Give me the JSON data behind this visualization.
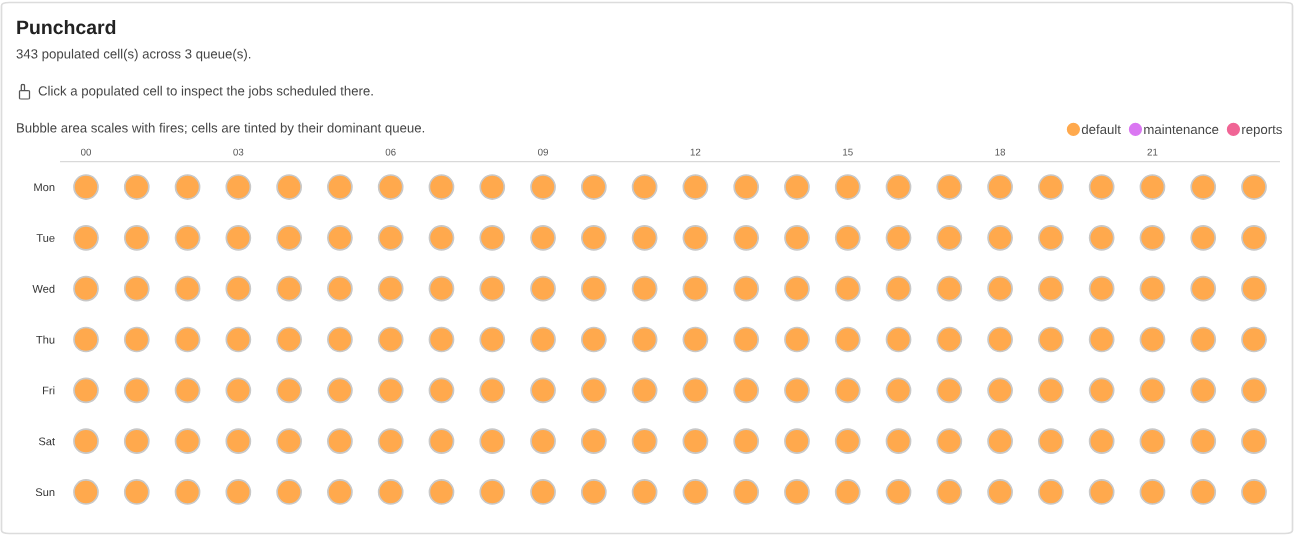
{
  "chart_data": {
    "type": "bubble",
    "orientation": "horizontal",
    "title": "Punchcard",
    "subtitle": "343 populated cell(s) across 3 queue(s).",
    "annotations": [
      "Click a populated cell to inspect the jobs scheduled there.",
      "Bubble area scales with fires; cells are tinted by their dominant queue."
    ],
    "categories": [
      "Mon",
      "Tue",
      "Wed",
      "Thu",
      "Fri",
      "Sat",
      "Sun"
    ],
    "xlim": [
      -0.5,
      23.5
    ],
    "xticks": [
      {
        "value": 0,
        "label": "00"
      },
      {
        "value": 3,
        "label": "03"
      },
      {
        "value": 6,
        "label": "06"
      },
      {
        "value": 9,
        "label": "09"
      },
      {
        "value": 12,
        "label": "12"
      },
      {
        "value": 15,
        "label": "15"
      },
      {
        "value": 18,
        "label": "18"
      },
      {
        "value": 21,
        "label": "21"
      }
    ],
    "series": [
      {
        "name": "default",
        "color": "#ffa94d",
        "values": [
          0,
          0,
          0,
          0,
          0,
          0,
          0
        ],
        "sizes": [
          1,
          1,
          1,
          1,
          1,
          1,
          1
        ]
      },
      {
        "color": "#ffa94d",
        "values": [
          1,
          1,
          1,
          1,
          1,
          1,
          1
        ],
        "sizes": [
          1,
          1,
          1,
          1,
          1,
          1,
          1
        ]
      },
      {
        "color": "#ffa94d",
        "values": [
          2,
          2,
          2,
          2,
          2,
          2,
          2
        ],
        "sizes": [
          1,
          1,
          1,
          1,
          1,
          1,
          1
        ]
      },
      {
        "color": "#ffa94d",
        "values": [
          3,
          3,
          3,
          3,
          3,
          3,
          3
        ],
        "sizes": [
          1,
          1,
          1,
          1,
          1,
          1,
          1
        ]
      },
      {
        "color": "#ffa94d",
        "values": [
          4,
          4,
          4,
          4,
          4,
          4,
          4
        ],
        "sizes": [
          1,
          1,
          1,
          1,
          1,
          1,
          1
        ]
      },
      {
        "color": "#ffa94d",
        "values": [
          5,
          5,
          5,
          5,
          5,
          5,
          5
        ],
        "sizes": [
          1,
          1,
          1,
          1,
          1,
          1,
          1
        ]
      },
      {
        "color": "#ffa94d",
        "values": [
          6,
          6,
          6,
          6,
          6,
          6,
          6
        ],
        "sizes": [
          1,
          1,
          1,
          1,
          1,
          1,
          1
        ]
      },
      {
        "color": "#ffa94d",
        "values": [
          7,
          7,
          7,
          7,
          7,
          7,
          7
        ],
        "sizes": [
          1,
          1,
          1,
          1,
          1,
          1,
          1
        ]
      },
      {
        "color": "#ffa94d",
        "values": [
          8,
          8,
          8,
          8,
          8,
          8,
          8
        ],
        "sizes": [
          1,
          1,
          1,
          1,
          1,
          1,
          1
        ]
      },
      {
        "color": "#ffa94d",
        "values": [
          9,
          9,
          9,
          9,
          9,
          9,
          9
        ],
        "sizes": [
          1,
          1,
          1,
          1,
          1,
          1,
          1
        ]
      },
      {
        "color": "#ffa94d",
        "values": [
          10,
          10,
          10,
          10,
          10,
          10,
          10
        ],
        "sizes": [
          1,
          1,
          1,
          1,
          1,
          1,
          1
        ]
      },
      {
        "color": "#ffa94d",
        "values": [
          11,
          11,
          11,
          11,
          11,
          11,
          11
        ],
        "sizes": [
          1,
          1,
          1,
          1,
          1,
          1,
          1
        ]
      },
      {
        "color": "#ffa94d",
        "values": [
          12,
          12,
          12,
          12,
          12,
          12,
          12
        ],
        "sizes": [
          1,
          1,
          1,
          1,
          1,
          1,
          1
        ]
      },
      {
        "color": "#ffa94d",
        "values": [
          13,
          13,
          13,
          13,
          13,
          13,
          13
        ],
        "sizes": [
          1,
          1,
          1,
          1,
          1,
          1,
          1
        ]
      },
      {
        "color": "#ffa94d",
        "values": [
          14,
          14,
          14,
          14,
          14,
          14,
          14
        ],
        "sizes": [
          1,
          1,
          1,
          1,
          1,
          1,
          1
        ]
      },
      {
        "color": "#ffa94d",
        "values": [
          15,
          15,
          15,
          15,
          15,
          15,
          15
        ],
        "sizes": [
          1,
          1,
          1,
          1,
          1,
          1,
          1
        ]
      },
      {
        "color": "#ffa94d",
        "values": [
          16,
          16,
          16,
          16,
          16,
          16,
          16
        ],
        "sizes": [
          1,
          1,
          1,
          1,
          1,
          1,
          1
        ]
      },
      {
        "color": "#ffa94d",
        "values": [
          17,
          17,
          17,
          17,
          17,
          17,
          17
        ],
        "sizes": [
          1,
          1,
          1,
          1,
          1,
          1,
          1
        ]
      },
      {
        "color": "#ffa94d",
        "values": [
          18,
          18,
          18,
          18,
          18,
          18,
          18
        ],
        "sizes": [
          1,
          1,
          1,
          1,
          1,
          1,
          1
        ]
      },
      {
        "color": "#ffa94d",
        "values": [
          19,
          19,
          19,
          19,
          19,
          19,
          19
        ],
        "sizes": [
          1,
          1,
          1,
          1,
          1,
          1,
          1
        ]
      },
      {
        "color": "#ffa94d",
        "values": [
          20,
          20,
          20,
          20,
          20,
          20,
          20
        ],
        "sizes": [
          1,
          1,
          1,
          1,
          1,
          1,
          1
        ]
      },
      {
        "color": "#ffa94d",
        "values": [
          21,
          21,
          21,
          21,
          21,
          21,
          21
        ],
        "sizes": [
          1,
          1,
          1,
          1,
          1,
          1,
          1
        ]
      },
      {
        "color": "#ffa94d",
        "values": [
          22,
          22,
          22,
          22,
          22,
          22,
          22
        ],
        "sizes": [
          1,
          1,
          1,
          1,
          1,
          1,
          1
        ]
      },
      {
        "color": "#ffa94d",
        "values": [
          23,
          23,
          23,
          23,
          23,
          23,
          23
        ],
        "sizes": [
          1,
          1,
          1,
          1,
          1,
          1,
          1
        ]
      },
      {
        "name": "maintenance",
        "color": "#da77f2",
        "values": [
          null,
          null,
          null,
          null,
          null,
          null,
          null
        ]
      },
      {
        "name": "reports",
        "color": "#f06595",
        "values": [
          null,
          null,
          null,
          null,
          null,
          null,
          null
        ]
      }
    ],
    "legend": "top right"
  }
}
